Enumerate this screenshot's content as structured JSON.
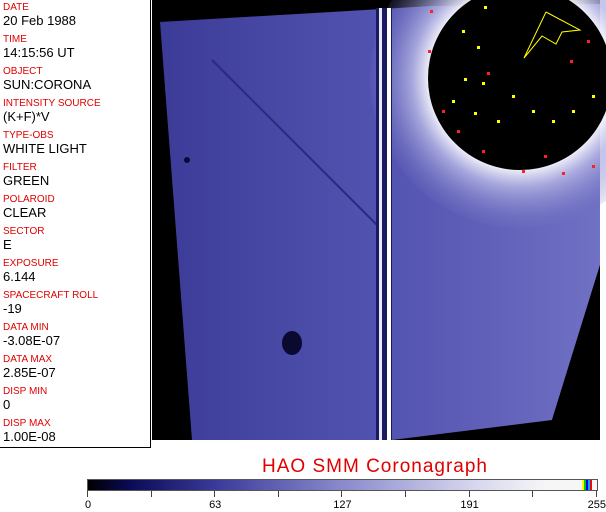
{
  "fields": [
    {
      "label": "DATE",
      "value": "20 Feb 1988"
    },
    {
      "label": "TIME",
      "value": "14:15:56 UT"
    },
    {
      "label": "OBJECT",
      "value": "SUN:CORONA"
    },
    {
      "label": "INTENSITY SOURCE",
      "value": "(K+F)*V"
    },
    {
      "label": "TYPE-OBS",
      "value": "WHITE LIGHT"
    },
    {
      "label": "FILTER",
      "value": "GREEN"
    },
    {
      "label": "POLAROID",
      "value": "CLEAR"
    },
    {
      "label": "SECTOR",
      "value": "E"
    },
    {
      "label": "EXPOSURE",
      "value": "6.144"
    },
    {
      "label": "SPACECRAFT ROLL",
      "value": "-19"
    },
    {
      "label": "DATA MIN",
      "value": "-3.08E-07"
    },
    {
      "label": "DATA MAX",
      "value": "2.85E-07"
    },
    {
      "label": "DISP MIN",
      "value": "0"
    },
    {
      "label": "DISP MAX",
      "value": "1.00E-08"
    }
  ],
  "title": "HAO  SMM Coronagraph",
  "colorbar": {
    "ticks": [
      "0",
      "63",
      "127",
      "191",
      "255"
    ],
    "colormap": "black-blue-white",
    "end_colors": [
      "#ffff00",
      "#00cc00",
      "#0000ff",
      "#ff0000"
    ]
  },
  "colors": {
    "label": "#e00000",
    "image_blue": "#4a4aa8"
  }
}
